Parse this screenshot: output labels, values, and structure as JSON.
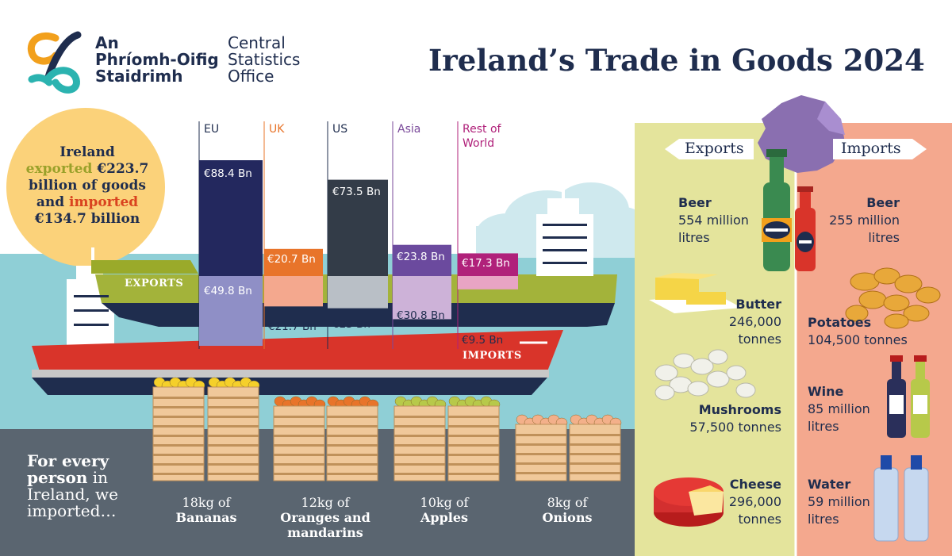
{
  "logo": {
    "irish_line1": "An",
    "irish_line2": "Phríomh-Oifig",
    "irish_line3": "Staidrimh",
    "english_line1": "Central",
    "english_line2": "Statistics",
    "english_line3": "Office",
    "colors": {
      "orange": "#f2a01c",
      "teal": "#2bb3b0",
      "navy": "#1f2d4e"
    }
  },
  "title": "Ireland’s Trade in Goods 2024",
  "summary": {
    "line1": "Ireland",
    "exported_word": "exported",
    "exported_value": "€223.7",
    "line3": "billion of goods",
    "and_word": "and",
    "imported_word": "imported",
    "imported_value": "€134.7 billion"
  },
  "regions": [
    {
      "name": "EU",
      "color": "#1f2d4e",
      "export_label": "€88.4 Bn",
      "import_label": "€49.8 Bn"
    },
    {
      "name": "UK",
      "color": "#e8742a",
      "export_label": "€20.7 Bn",
      "import_label": "€21.7 Bn"
    },
    {
      "name": "US",
      "color": "#1f2d4e",
      "export_label": "€73.5 Bn",
      "import_label": "€23 Bn"
    },
    {
      "name": "Asia",
      "color": "#7a4a9a",
      "export_label": "€23.8 Bn",
      "import_label": "€30.8 Bn"
    },
    {
      "name_line1": "Rest of",
      "name_line2": "World",
      "color": "#b0217a",
      "export_label": "€17.3 Bn",
      "import_label": "€9.5 Bn"
    }
  ],
  "chart_data": {
    "type": "bar",
    "categories": [
      "EU",
      "UK",
      "US",
      "Asia",
      "Rest of World"
    ],
    "series": [
      {
        "name": "EXPORTS",
        "values": [
          88.4,
          20.7,
          73.5,
          23.8,
          17.3
        ]
      },
      {
        "name": "IMPORTS",
        "values": [
          49.8,
          21.7,
          23,
          30.8,
          9.5
        ]
      }
    ]
  },
  "ships": {
    "exports_label": "EXPORTS",
    "imports_label": "IMPORTS"
  },
  "per_person": {
    "line1": "For every",
    "line2_bold": "person",
    "line2_rest": " in",
    "line3": "Ireland, we",
    "line4": "imported…",
    "items": [
      {
        "amount": "18kg of",
        "name": "Bananas"
      },
      {
        "amount": "12kg of",
        "name": "Oranges and mandarins"
      },
      {
        "amount": "10kg of",
        "name": "Apples"
      },
      {
        "amount": "8kg of",
        "name": "Onions"
      }
    ]
  },
  "panel": {
    "exports_head": "Exports",
    "imports_head": "Imports",
    "exports": [
      {
        "name": "Beer",
        "amt1": "554 million",
        "amt2": "litres"
      },
      {
        "name": "Butter",
        "amt1": "246,000",
        "amt2": "tonnes"
      },
      {
        "name": "Mushrooms",
        "amt1": "57,500 tonnes",
        "amt2": ""
      },
      {
        "name": "Cheese",
        "amt1": "296,000",
        "amt2": "tonnes"
      }
    ],
    "imports": [
      {
        "name": "Beer",
        "amt1": "255 million",
        "amt2": "litres"
      },
      {
        "name": "Potatoes",
        "amt1": "104,500 tonnes",
        "amt2": ""
      },
      {
        "name": "Wine",
        "amt1": "85 million",
        "amt2": "litres"
      },
      {
        "name": "Water",
        "amt1": "59 million",
        "amt2": "litres"
      }
    ],
    "colors": {
      "exports_bg": "#e4e49c",
      "imports_bg": "#f4a88e"
    }
  }
}
